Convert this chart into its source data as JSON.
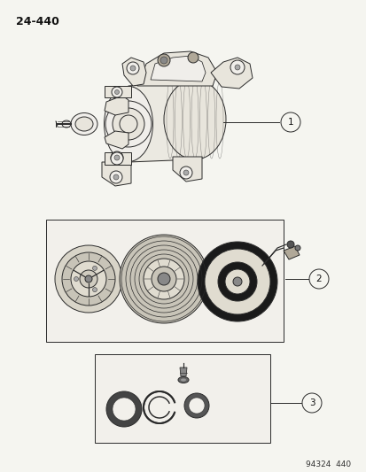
{
  "bg_color": "#f5f5f0",
  "page_label": "24-440",
  "footer_label": "94324  440",
  "callout_labels": [
    "1",
    "2",
    "3"
  ],
  "fig_width": 4.14,
  "fig_height": 5.33,
  "dpi": 100,
  "lc": "#2a2a2a",
  "lw": 0.7
}
